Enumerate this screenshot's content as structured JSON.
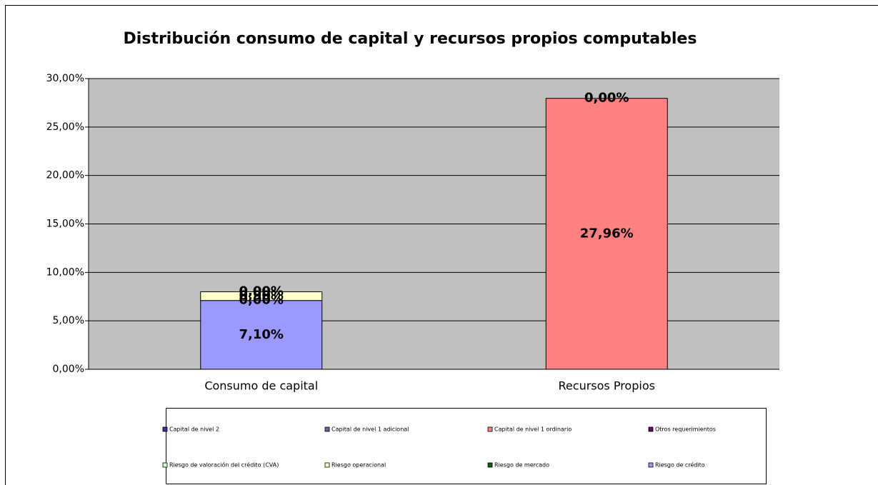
{
  "chart_data": {
    "type": "stacked_bar",
    "title": "Distribución  consumo de capital y recursos propios computables",
    "categories": [
      "Consumo de capital",
      "Recursos Propios"
    ],
    "series": [
      {
        "name": "Capital de nivel 2",
        "color": "#333399",
        "values": [
          null,
          0
        ],
        "value_labels": [
          null,
          "0,00%"
        ]
      },
      {
        "name": "Capital de nivel 1 adicional",
        "color": "#666699",
        "values": [
          null,
          0
        ],
        "value_labels": [
          null,
          "0,00%"
        ]
      },
      {
        "name": "Capital de nivel 1 ordinario",
        "color": "#ff8080",
        "values": [
          null,
          27.96
        ],
        "value_labels": [
          null,
          "27,96%"
        ]
      },
      {
        "name": "Otros requerimientos",
        "color": "#660066",
        "values": [
          0,
          null
        ],
        "value_labels": [
          "0,00%",
          null
        ]
      },
      {
        "name": "Riesgo de valoración del crédito (CVA)",
        "color": "#ccffcc",
        "values": [
          0,
          null
        ],
        "value_labels": [
          "0,00%",
          null
        ]
      },
      {
        "name": "Riesgo operacional",
        "color": "#ffffcc",
        "values": [
          0.9,
          null
        ],
        "value_labels": [
          "0,90%",
          null
        ]
      },
      {
        "name": "Riesgo de mercado",
        "color": "#006600",
        "values": [
          0,
          null
        ],
        "value_labels": [
          "0,00%",
          null
        ]
      },
      {
        "name": "Riesgo de crédito",
        "color": "#9999ff",
        "values": [
          7.1,
          null
        ],
        "value_labels": [
          "7,10%",
          null
        ]
      }
    ],
    "ylim": [
      0,
      30
    ],
    "yticks": [
      {
        "value": 0,
        "label": "0,00%"
      },
      {
        "value": 5,
        "label": "5,00%"
      },
      {
        "value": 10,
        "label": "10,00%"
      },
      {
        "value": 15,
        "label": "15,00%"
      },
      {
        "value": 20,
        "label": "20,00%"
      },
      {
        "value": 25,
        "label": "25,00%"
      },
      {
        "value": 30,
        "label": "30,00%"
      }
    ],
    "grid": true,
    "legend": "bottom",
    "plot_background": "#c0c0c0"
  }
}
